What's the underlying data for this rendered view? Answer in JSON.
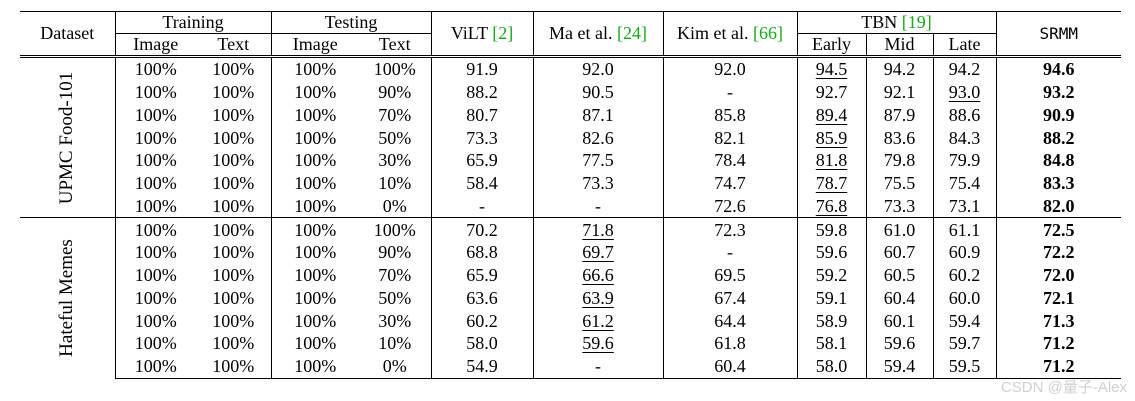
{
  "table": {
    "headers": {
      "dataset": "Dataset",
      "training": "Training",
      "testing": "Testing",
      "image": "Image",
      "text": "Text",
      "vilt": "ViLT",
      "vilt_ref": "[2]",
      "ma": "Ma et al.",
      "ma_ref": "[24]",
      "kim": "Kim et al.",
      "kim_ref": "[66]",
      "tbn": "TBN",
      "tbn_ref": "[19]",
      "early": "Early",
      "mid": "Mid",
      "late": "Late",
      "srmm": "SRMM"
    },
    "groups": [
      {
        "name": "UPMC Food-101",
        "rows": [
          {
            "train_image": "100%",
            "train_text": "100%",
            "test_image": "100%",
            "test_text": "100%",
            "vilt": "91.9",
            "ma": "92.0",
            "kim": "92.0",
            "tbn_early": "94.5",
            "tbn_mid": "94.2",
            "tbn_late": "94.2",
            "srmm": "94.6"
          },
          {
            "train_image": "100%",
            "train_text": "100%",
            "test_image": "100%",
            "test_text": "90%",
            "vilt": "88.2",
            "ma": "90.5",
            "kim": "-",
            "tbn_early": "92.7",
            "tbn_mid": "92.1",
            "tbn_late": "93.0",
            "srmm": "93.2"
          },
          {
            "train_image": "100%",
            "train_text": "100%",
            "test_image": "100%",
            "test_text": "70%",
            "vilt": "80.7",
            "ma": "87.1",
            "kim": "85.8",
            "tbn_early": "89.4",
            "tbn_mid": "87.9",
            "tbn_late": "88.6",
            "srmm": "90.9"
          },
          {
            "train_image": "100%",
            "train_text": "100%",
            "test_image": "100%",
            "test_text": "50%",
            "vilt": "73.3",
            "ma": "82.6",
            "kim": "82.1",
            "tbn_early": "85.9",
            "tbn_mid": "83.6",
            "tbn_late": "84.3",
            "srmm": "88.2"
          },
          {
            "train_image": "100%",
            "train_text": "100%",
            "test_image": "100%",
            "test_text": "30%",
            "vilt": "65.9",
            "ma": "77.5",
            "kim": "78.4",
            "tbn_early": "81.8",
            "tbn_mid": "79.8",
            "tbn_late": "79.9",
            "srmm": "84.8"
          },
          {
            "train_image": "100%",
            "train_text": "100%",
            "test_image": "100%",
            "test_text": "10%",
            "vilt": "58.4",
            "ma": "73.3",
            "kim": "74.7",
            "tbn_early": "78.7",
            "tbn_mid": "75.5",
            "tbn_late": "75.4",
            "srmm": "83.3"
          },
          {
            "train_image": "100%",
            "train_text": "100%",
            "test_image": "100%",
            "test_text": "0%",
            "vilt": "-",
            "ma": "-",
            "kim": "72.6",
            "tbn_early": "76.8",
            "tbn_mid": "73.3",
            "tbn_late": "73.1",
            "srmm": "82.0"
          }
        ]
      },
      {
        "name": "Hateful Memes",
        "rows": [
          {
            "train_image": "100%",
            "train_text": "100%",
            "test_image": "100%",
            "test_text": "100%",
            "vilt": "70.2",
            "ma": "71.8",
            "kim": "72.3",
            "tbn_early": "59.8",
            "tbn_mid": "61.0",
            "tbn_late": "61.1",
            "srmm": "72.5"
          },
          {
            "train_image": "100%",
            "train_text": "100%",
            "test_image": "100%",
            "test_text": "90%",
            "vilt": "68.8",
            "ma": "69.7",
            "kim": "-",
            "tbn_early": "59.6",
            "tbn_mid": "60.7",
            "tbn_late": "60.9",
            "srmm": "72.2"
          },
          {
            "train_image": "100%",
            "train_text": "100%",
            "test_image": "100%",
            "test_text": "70%",
            "vilt": "65.9",
            "ma": "66.6",
            "kim": "69.5",
            "tbn_early": "59.2",
            "tbn_mid": "60.5",
            "tbn_late": "60.2",
            "srmm": "72.0"
          },
          {
            "train_image": "100%",
            "train_text": "100%",
            "test_image": "100%",
            "test_text": "50%",
            "vilt": "63.6",
            "ma": "63.9",
            "kim": "67.4",
            "tbn_early": "59.1",
            "tbn_mid": "60.4",
            "tbn_late": "60.0",
            "srmm": "72.1"
          },
          {
            "train_image": "100%",
            "train_text": "100%",
            "test_image": "100%",
            "test_text": "30%",
            "vilt": "60.2",
            "ma": "61.2",
            "kim": "64.4",
            "tbn_early": "58.9",
            "tbn_mid": "60.1",
            "tbn_late": "59.4",
            "srmm": "71.3"
          },
          {
            "train_image": "100%",
            "train_text": "100%",
            "test_image": "100%",
            "test_text": "10%",
            "vilt": "58.0",
            "ma": "59.6",
            "kim": "61.8",
            "tbn_early": "58.1",
            "tbn_mid": "59.6",
            "tbn_late": "59.7",
            "srmm": "71.2"
          },
          {
            "train_image": "100%",
            "train_text": "100%",
            "test_image": "100%",
            "test_text": "0%",
            "vilt": "54.9",
            "ma": "-",
            "kim": "60.4",
            "tbn_early": "58.0",
            "tbn_mid": "59.4",
            "tbn_late": "59.5",
            "srmm": "71.2"
          }
        ]
      }
    ],
    "emphasis": {
      "underline": [
        "0.0.tbn_early",
        "0.1.tbn_late",
        "0.2.tbn_early",
        "0.3.tbn_early",
        "0.4.tbn_early",
        "0.5.tbn_early",
        "0.6.tbn_early",
        "1.0.ma",
        "1.1.ma",
        "1.2.ma",
        "1.3.ma",
        "1.4.ma",
        "1.5.ma"
      ],
      "bold_column": "srmm"
    }
  },
  "watermark": "CSDN @量子-Alex"
}
